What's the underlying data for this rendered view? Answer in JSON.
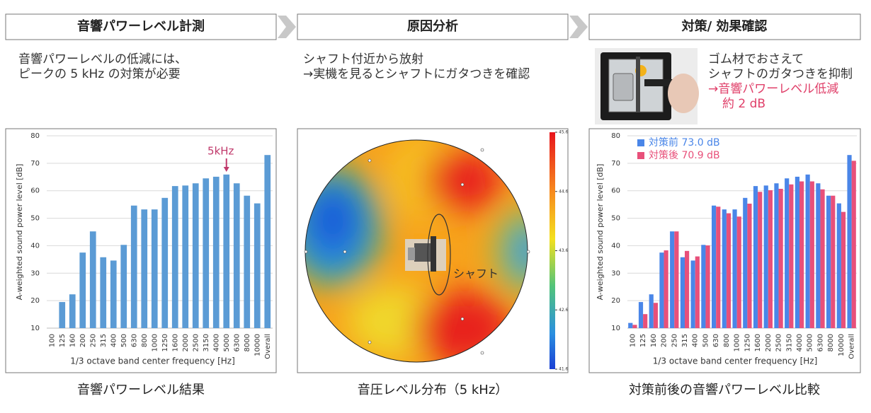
{
  "steps": [
    {
      "title": "音響パワーレベル計測",
      "description": [
        "音響パワーレベルの低減には、",
        "ピークの 5 kHz の対策が必要"
      ],
      "caption": "音響パワーレベル結果"
    },
    {
      "title": "原因分析",
      "description": [
        "シャフト付近から放射",
        "→実機を見るとシャフトにガタつきを確認"
      ],
      "caption": "音圧レベル分布（5 kHz）"
    },
    {
      "title": "対策/ 効果確認",
      "description": [
        "ゴム材でおさえて",
        "シャフトのガタつきを抑制"
      ],
      "result": [
        "→音響パワーレベル低減",
        "約 2 dB"
      ],
      "caption": "対策前後の音響パワーレベル比較"
    }
  ],
  "pressure_map": {
    "clim": [
      41.6,
      45.6
    ],
    "ticks": [
      41.6,
      42.6,
      43.6,
      44.6,
      45.6
    ],
    "annotation": "シャフト"
  },
  "chart_data": [
    {
      "type": "bar",
      "x_label": "1/3 octave band center frequency [Hz]",
      "y_label": "A-weighted sound power level [dB]",
      "categories": [
        "100",
        "125",
        "160",
        "200",
        "250",
        "315",
        "400",
        "500",
        "630",
        "800",
        "1000",
        "1250",
        "1600",
        "2000",
        "2500",
        "3150",
        "4000",
        "5000",
        "6300",
        "8000",
        "10000",
        "Overall"
      ],
      "values": [
        null,
        19.5,
        22.3,
        37.5,
        45.2,
        35.8,
        34.6,
        40.3,
        54.6,
        53.2,
        53.2,
        57.4,
        61.7,
        61.9,
        62.7,
        64.5,
        65.1,
        65.9,
        62.7,
        58.2,
        55.4,
        73.0
      ],
      "color": "#5b9bd5",
      "annotation": "5kHz",
      "ylim": [
        10,
        80
      ],
      "yticks": [
        10,
        20,
        30,
        40,
        50,
        60,
        70,
        80
      ],
      "grid": true
    },
    {
      "type": "bar",
      "x_label": "1/3 octave band center frequency [Hz]",
      "y_label": "A-weighted sound power level [dB]",
      "categories": [
        "100",
        "125",
        "160",
        "200",
        "250",
        "315",
        "400",
        "500",
        "630",
        "800",
        "1000",
        "1250",
        "1600",
        "2000",
        "2500",
        "3150",
        "4000",
        "5000",
        "6300",
        "8000",
        "10000",
        "Overall"
      ],
      "series": [
        {
          "name": "対策前 73.0 dB",
          "color": "#4a86e8",
          "values": [
            11.9,
            19.5,
            22.3,
            37.5,
            45.2,
            35.8,
            34.6,
            40.3,
            54.6,
            53.2,
            53.2,
            57.4,
            61.7,
            61.9,
            62.7,
            64.5,
            65.1,
            65.9,
            62.7,
            58.2,
            55.4,
            73.0
          ]
        },
        {
          "name": "対策後 70.9 dB",
          "color": "#e8507a",
          "values": [
            11.2,
            15.1,
            19.2,
            38.3,
            45.2,
            38.1,
            36.1,
            40.1,
            54.2,
            51.8,
            50.6,
            55.3,
            59.6,
            60.2,
            60.7,
            62.3,
            63.4,
            63.4,
            60.5,
            58.2,
            52.3,
            70.9
          ]
        }
      ],
      "ylim": [
        10,
        80
      ],
      "yticks": [
        10,
        20,
        30,
        40,
        50,
        60,
        70,
        80
      ],
      "grid": true
    }
  ]
}
